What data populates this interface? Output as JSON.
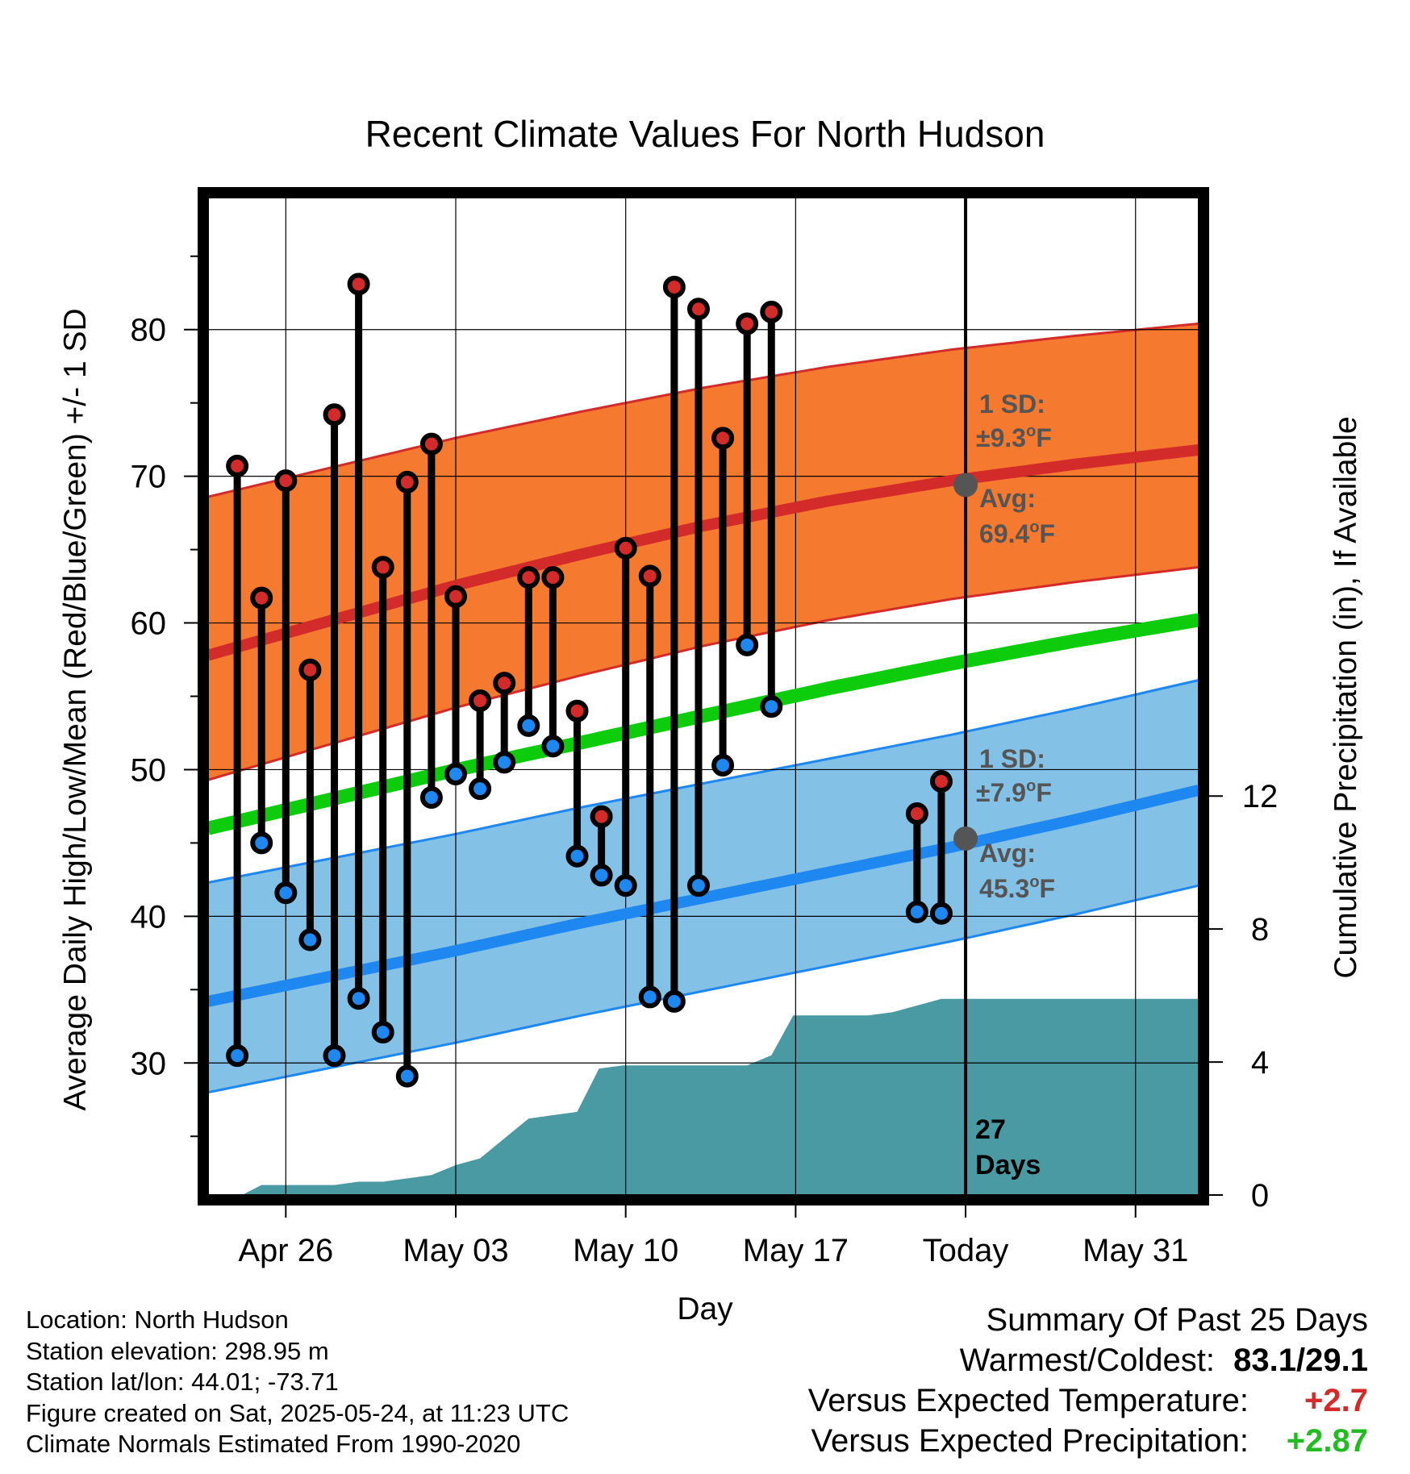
{
  "chart_data": {
    "type": "line",
    "title": "Recent Climate Values For North Hudson",
    "xlabel": "Day",
    "ylabel": "Average Daily High/Low/Mean (Red/Blue/Green) +/- 1 SD",
    "y2label": "Cumulative Precipitation (in), If Available",
    "x_tick_labels": [
      "Apr 26",
      "May 03",
      "May 10",
      "May 17",
      "Today",
      "May 31"
    ],
    "x_tick_days": [
      3,
      10,
      17,
      24,
      31,
      38
    ],
    "xlim_days": [
      -0.2,
      40.6
    ],
    "ylim": [
      21,
      89
    ],
    "y_ticks": [
      30,
      40,
      50,
      60,
      70,
      80
    ],
    "y2lim": [
      0,
      30
    ],
    "y2_ticks": [
      0,
      4,
      8,
      12
    ],
    "grid": true,
    "today_day": 31,
    "days_label": "27\nDays",
    "normals": {
      "high_avg": [
        57.8,
        71.8
      ],
      "high_sd_band": [
        [
          49.3,
          63.8
        ],
        [
          68.6,
          80.4
        ]
      ],
      "low_avg": [
        34.2,
        48.6
      ],
      "low_sd_band": [
        [
          28.0,
          42.1
        ],
        [
          42.3,
          56.1
        ]
      ],
      "mean_avg": [
        46.0,
        60.2
      ],
      "curve_shape_high": [
        0,
        0.17,
        0.34,
        0.49,
        0.63,
        0.75,
        0.85,
        0.93,
        1.0
      ],
      "curve_shape_low": [
        0,
        0.12,
        0.24,
        0.37,
        0.49,
        0.61,
        0.73,
        0.86,
        1.0
      ],
      "curve_shape_mean": [
        0,
        0.14,
        0.28,
        0.41,
        0.54,
        0.67,
        0.79,
        0.9,
        1.0
      ]
    },
    "high_annotation": {
      "sd_label": "1 SD:",
      "sd_value": "±9.3",
      "avg_label": "Avg:",
      "avg_value": "69.4",
      "unit": "F",
      "degree": "o",
      "today_value": 69.4
    },
    "low_annotation": {
      "sd_label": "1 SD:",
      "sd_value": "±7.9",
      "avg_label": "Avg:",
      "avg_value": "45.3",
      "unit": "F",
      "degree": "o",
      "today_value": 45.3
    },
    "daily": [
      {
        "day": 1,
        "high": 70.7,
        "low": 30.5
      },
      {
        "day": 2,
        "high": 61.7,
        "low": 45.0
      },
      {
        "day": 3,
        "high": 69.7,
        "low": 41.6
      },
      {
        "day": 4,
        "high": 56.8,
        "low": 38.4
      },
      {
        "day": 5,
        "high": 74.2,
        "low": 30.5
      },
      {
        "day": 6,
        "high": 83.1,
        "low": 34.4
      },
      {
        "day": 7,
        "high": 63.8,
        "low": 32.1
      },
      {
        "day": 8,
        "high": 69.6,
        "low": 29.1
      },
      {
        "day": 9,
        "high": 72.2,
        "low": 48.1
      },
      {
        "day": 10,
        "high": 61.8,
        "low": 49.7
      },
      {
        "day": 11,
        "high": 54.7,
        "low": 48.7
      },
      {
        "day": 12,
        "high": 55.9,
        "low": 50.5
      },
      {
        "day": 13,
        "high": 63.1,
        "low": 53.0
      },
      {
        "day": 14,
        "high": 63.1,
        "low": 51.6
      },
      {
        "day": 15,
        "high": 54.0,
        "low": 44.1
      },
      {
        "day": 16,
        "high": 46.8,
        "low": 42.8
      },
      {
        "day": 17,
        "high": 65.1,
        "low": 42.1
      },
      {
        "day": 18,
        "high": 63.2,
        "low": 34.5
      },
      {
        "day": 19,
        "high": 82.9,
        "low": 34.2
      },
      {
        "day": 20,
        "high": 81.4,
        "low": 42.1
      },
      {
        "day": 21,
        "high": 72.6,
        "low": 50.3
      },
      {
        "day": 22,
        "high": 80.4,
        "low": 58.5
      },
      {
        "day": 23,
        "high": 81.2,
        "low": 54.3
      },
      {
        "day": 29,
        "high": 47.0,
        "low": 40.3
      },
      {
        "day": 30,
        "high": 49.2,
        "low": 40.2
      }
    ],
    "precip_cumulative": {
      "days": [
        1.2,
        2.0,
        3.0,
        4.0,
        5.0,
        6.0,
        7.0,
        8.0,
        9.0,
        10.0,
        11.0,
        12.0,
        13.0,
        14.0,
        15.0,
        15.9,
        16.9,
        17.3,
        18.0,
        19.0,
        20.0,
        21.0,
        22.0,
        23.0,
        23.9,
        25.0,
        26.0,
        27.0,
        28.0,
        29.0,
        30.0,
        31.0,
        40.6
      ],
      "values": [
        0,
        0.3,
        0.3,
        0.3,
        0.3,
        0.4,
        0.4,
        0.5,
        0.6,
        0.9,
        1.1,
        1.7,
        2.3,
        2.4,
        2.5,
        3.8,
        3.9,
        3.9,
        3.9,
        3.9,
        3.9,
        3.9,
        3.9,
        4.2,
        5.4,
        5.4,
        5.4,
        5.4,
        5.5,
        5.7,
        5.9,
        5.9,
        5.9
      ]
    }
  },
  "footer_info": {
    "location": "Location: North Hudson",
    "elevation": "Station elevation: 298.95 m",
    "latlon": "Station lat/lon: 44.01; -73.71",
    "created": "Figure created on Sat, 2025-05-24, at 11:23 UTC",
    "normals": "Climate Normals Estimated From 1990-2020"
  },
  "summary": {
    "title": "Summary Of Past 25 Days",
    "warmest_label": "Warmest/Coldest:",
    "warmest_value": "83.1/29.1",
    "temp_label": "Versus Expected Temperature:",
    "temp_value": "+2.7",
    "precip_label": "Versus Expected Precipitation:",
    "precip_value": "+2.87"
  },
  "colors": {
    "high_band": "#f57a30",
    "high_line": "#d32a2a",
    "low_band": "#84c1e6",
    "low_line": "#1e88f0",
    "mean_line": "#0ccc0c",
    "precip_fill": "#4a9aa4",
    "high_dot": "#d32a2a",
    "low_dot": "#1e88f0",
    "annotation_text": "#555555",
    "temp_positive": "#d32a2a",
    "precip_positive": "#22bb22"
  }
}
